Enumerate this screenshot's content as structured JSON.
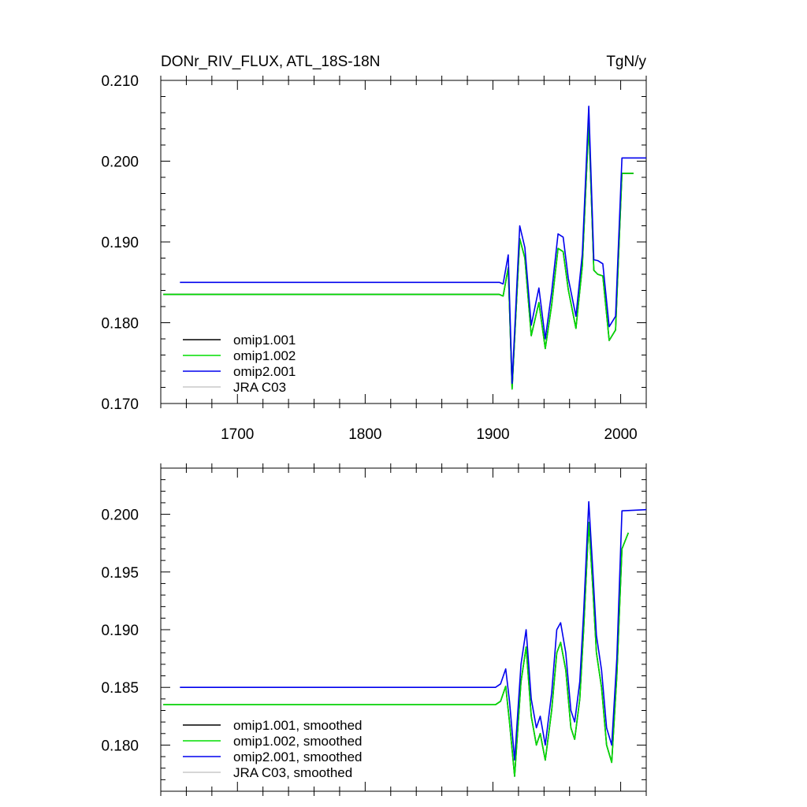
{
  "chart_data": [
    {
      "type": "line",
      "title": "DONr_RIV_FLUX, ATL_18S-18N",
      "units": "TgN/y",
      "xlim": [
        1640,
        2020
      ],
      "ylim": [
        0.17,
        0.21
      ],
      "x_ticks": [
        1700,
        1800,
        1900,
        2000
      ],
      "x_tick_labels": [
        "1700",
        "1800",
        "1900",
        "2000"
      ],
      "y_ticks": [
        0.17,
        0.18,
        0.19,
        0.2,
        0.21
      ],
      "y_tick_labels": [
        "0.170",
        "0.180",
        "0.190",
        "0.200",
        "0.210"
      ],
      "legend_position": "bottom-left",
      "series": [
        {
          "name": "omip1.001",
          "color": "#000000",
          "x": [
            1642,
            1905,
            1908,
            1912,
            1915,
            1921,
            1925,
            1930,
            1936,
            1941,
            1946,
            1951,
            1955,
            1959,
            1965,
            1970,
            1975,
            1979,
            1982,
            1986,
            1991,
            1996,
            2001,
            2010
          ],
          "y": [
            0.1835,
            0.1835,
            0.1833,
            0.1868,
            0.1718,
            0.1904,
            0.188,
            0.1784,
            0.1825,
            0.1768,
            0.1822,
            0.1892,
            0.1888,
            0.1841,
            0.1793,
            0.187,
            0.2048,
            0.1865,
            0.186,
            0.1858,
            0.1778,
            0.1791,
            0.1985,
            0.1985
          ]
        },
        {
          "name": "omip1.002",
          "color": "#00dd00",
          "x": [
            1642,
            1905,
            1908,
            1912,
            1915,
            1921,
            1925,
            1930,
            1936,
            1941,
            1946,
            1951,
            1955,
            1959,
            1965,
            1970,
            1975,
            1979,
            1982,
            1986,
            1991,
            1996,
            2001,
            2010
          ],
          "y": [
            0.1835,
            0.1835,
            0.1833,
            0.1868,
            0.1718,
            0.1904,
            0.188,
            0.1784,
            0.1825,
            0.1768,
            0.1822,
            0.1892,
            0.1888,
            0.1841,
            0.1793,
            0.187,
            0.2048,
            0.1865,
            0.186,
            0.1858,
            0.1778,
            0.1791,
            0.1985,
            0.1985
          ]
        },
        {
          "name": "omip2.001",
          "color": "#0000ee",
          "x": [
            1655,
            1905,
            1908,
            1912,
            1915,
            1921,
            1925,
            1930,
            1936,
            1941,
            1946,
            1951,
            1955,
            1959,
            1965,
            1970,
            1975,
            1979,
            1982,
            1986,
            1991,
            1996,
            2001,
            2020
          ],
          "y": [
            0.185,
            0.185,
            0.1848,
            0.1884,
            0.1725,
            0.192,
            0.1893,
            0.1797,
            0.1843,
            0.178,
            0.1838,
            0.191,
            0.1906,
            0.1855,
            0.1808,
            0.1885,
            0.2068,
            0.1878,
            0.1877,
            0.1873,
            0.1795,
            0.1808,
            0.2004,
            0.2004
          ]
        },
        {
          "name": "JRA C03",
          "color": "#c8c8c8",
          "x": [],
          "y": []
        }
      ]
    },
    {
      "type": "line",
      "xlim": [
        1640,
        2020
      ],
      "ylim": [
        0.176,
        0.204
      ],
      "x_ticks": [
        1700,
        1800,
        1900,
        2000
      ],
      "y_ticks": [
        0.18,
        0.185,
        0.19,
        0.195,
        0.2
      ],
      "y_tick_labels": [
        "0.180",
        "0.185",
        "0.190",
        "0.195",
        "0.200"
      ],
      "legend_position": "bottom-left",
      "series": [
        {
          "name": "omip1.001, smoothed",
          "color": "#000000",
          "x": [
            1642,
            1902,
            1906,
            1910,
            1913,
            1917,
            1922,
            1926,
            1930,
            1934,
            1937,
            1941,
            1946,
            1950,
            1953,
            1957,
            1961,
            1964,
            1968,
            1971,
            1975,
            1978,
            1981,
            1985,
            1989,
            1993,
            1997,
            2001,
            2006
          ],
          "y": [
            0.1835,
            0.1835,
            0.1838,
            0.1851,
            0.182,
            0.1773,
            0.1855,
            0.1885,
            0.1825,
            0.18,
            0.181,
            0.1787,
            0.183,
            0.188,
            0.1889,
            0.1865,
            0.1815,
            0.1805,
            0.184,
            0.19,
            0.1993,
            0.194,
            0.188,
            0.185,
            0.18,
            0.1785,
            0.186,
            0.197,
            0.1984
          ]
        },
        {
          "name": "omip1.002, smoothed",
          "color": "#00dd00",
          "x": [
            1642,
            1902,
            1906,
            1910,
            1913,
            1917,
            1922,
            1926,
            1930,
            1934,
            1937,
            1941,
            1946,
            1950,
            1953,
            1957,
            1961,
            1964,
            1968,
            1971,
            1975,
            1978,
            1981,
            1985,
            1989,
            1993,
            1997,
            2001,
            2006
          ],
          "y": [
            0.1835,
            0.1835,
            0.1838,
            0.1851,
            0.182,
            0.1773,
            0.1855,
            0.1885,
            0.1825,
            0.18,
            0.181,
            0.1787,
            0.183,
            0.188,
            0.1889,
            0.1865,
            0.1815,
            0.1805,
            0.184,
            0.19,
            0.1993,
            0.194,
            0.188,
            0.185,
            0.18,
            0.1785,
            0.186,
            0.197,
            0.1984
          ]
        },
        {
          "name": "omip2.001, smoothed",
          "color": "#0000ee",
          "x": [
            1655,
            1902,
            1906,
            1910,
            1913,
            1917,
            1922,
            1926,
            1930,
            1934,
            1937,
            1941,
            1946,
            1950,
            1953,
            1957,
            1961,
            1964,
            1968,
            1971,
            1975,
            1978,
            1981,
            1985,
            1989,
            1993,
            1997,
            2001,
            2020
          ],
          "y": [
            0.185,
            0.185,
            0.1853,
            0.1866,
            0.1838,
            0.1787,
            0.187,
            0.19,
            0.184,
            0.1815,
            0.1825,
            0.18,
            0.1845,
            0.19,
            0.1906,
            0.188,
            0.183,
            0.182,
            0.1855,
            0.1915,
            0.2011,
            0.1955,
            0.1895,
            0.1865,
            0.1815,
            0.18,
            0.1875,
            0.2003,
            0.2004
          ]
        },
        {
          "name": "JRA C03, smoothed",
          "color": "#c8c8c8",
          "x": [],
          "y": []
        }
      ]
    }
  ]
}
